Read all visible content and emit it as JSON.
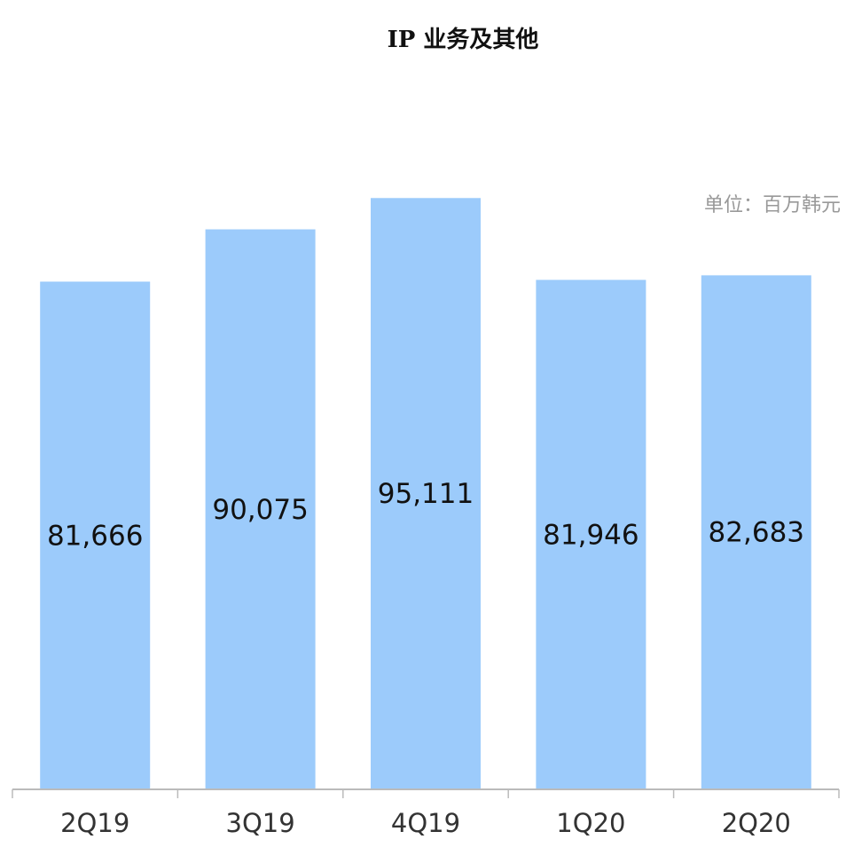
{
  "chart_data": {
    "type": "bar",
    "title": "IP 业务及其他",
    "unit_note": "单位：百万韩元",
    "categories": [
      "2Q19",
      "3Q19",
      "4Q19",
      "1Q20",
      "2Q20"
    ],
    "values": [
      81666,
      90075,
      95111,
      81946,
      82683
    ],
    "value_labels": [
      "81,666",
      "90,075",
      "95,111",
      "81,946",
      "82,683"
    ],
    "color": "#9ccbfb",
    "ylim": [
      0,
      100000
    ]
  }
}
